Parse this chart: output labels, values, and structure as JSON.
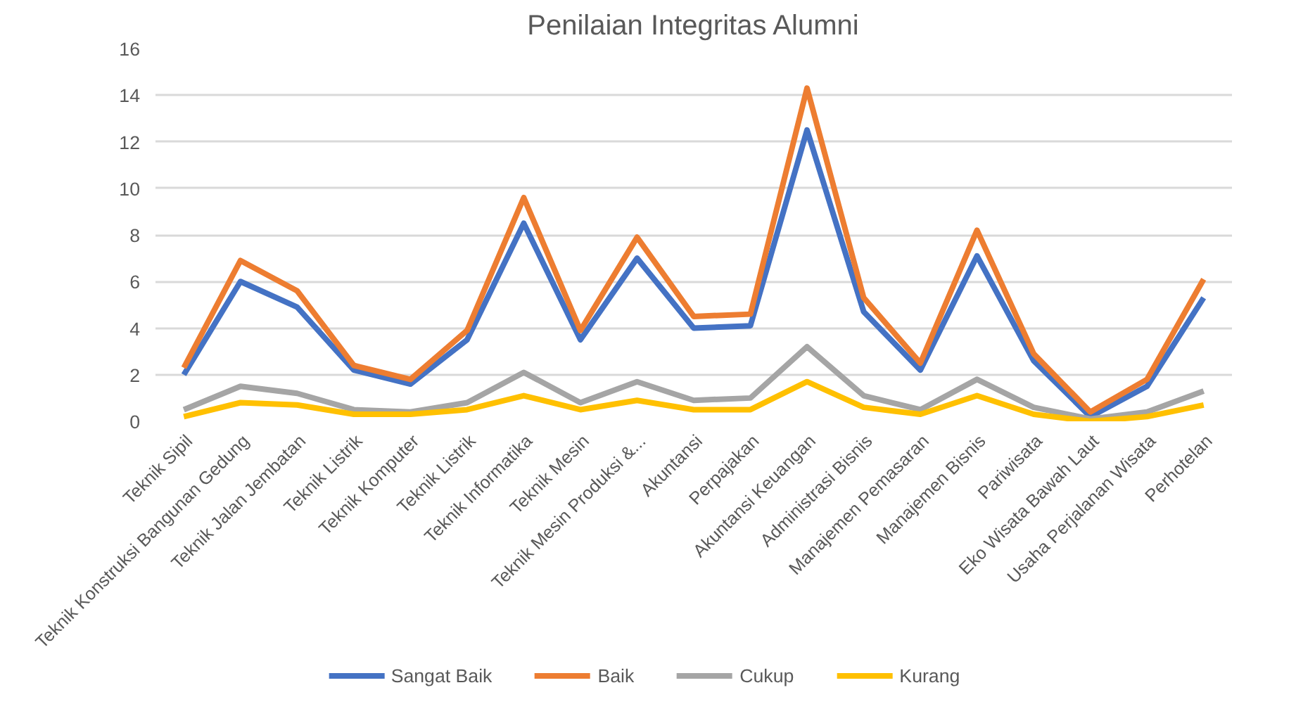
{
  "chart_data": {
    "type": "line",
    "title": "Penilaian Integritas Alumni",
    "categories": [
      "Teknik Sipil",
      "Teknik Konstruksi Bangunan Gedung",
      "Teknik Jalan Jembatan",
      "Teknik Listrik",
      "Teknik Komputer",
      "Teknik Listrik",
      "Teknik Informatika",
      "Teknik Mesin",
      "Teknik Mesin Produksi &...",
      "Akuntansi",
      "Perpajakan",
      "Akuntansi Keuangan",
      "Administrasi Bisnis",
      "Manajemen Pemasaran",
      "Manajemen Bisnis",
      "Pariwisata",
      "Eko Wisata Bawah Laut",
      "Usaha Perjalanan Wisata",
      "Perhotelan"
    ],
    "series": [
      {
        "name": "Sangat Baik",
        "color": "#4472c4",
        "values": [
          2.0,
          6.0,
          4.9,
          2.2,
          1.6,
          3.5,
          8.5,
          3.5,
          7.0,
          4.0,
          4.1,
          12.5,
          4.7,
          2.2,
          7.1,
          2.6,
          0.2,
          1.5,
          5.3
        ]
      },
      {
        "name": "Baik",
        "color": "#ed7d31",
        "values": [
          2.3,
          6.9,
          5.6,
          2.4,
          1.8,
          3.9,
          9.6,
          3.9,
          7.9,
          4.5,
          4.6,
          14.3,
          5.3,
          2.5,
          8.2,
          2.9,
          0.4,
          1.8,
          6.1
        ]
      },
      {
        "name": "Cukup",
        "color": "#a5a5a5",
        "values": [
          0.5,
          1.5,
          1.2,
          0.5,
          0.4,
          0.8,
          2.1,
          0.8,
          1.7,
          0.9,
          1.0,
          3.2,
          1.1,
          0.5,
          1.8,
          0.6,
          0.1,
          0.4,
          1.3
        ]
      },
      {
        "name": "Kurang",
        "color": "#ffc000",
        "values": [
          0.2,
          0.8,
          0.7,
          0.3,
          0.3,
          0.5,
          1.1,
          0.5,
          0.9,
          0.5,
          0.5,
          1.7,
          0.6,
          0.3,
          1.1,
          0.3,
          0.0,
          0.2,
          0.7
        ]
      }
    ],
    "ylim": [
      0,
      16
    ],
    "yticks": [
      0,
      2,
      4,
      6,
      8,
      10,
      12,
      14,
      16
    ],
    "grid": "y",
    "legend": "bottom",
    "marker": "none",
    "line_style": "solid"
  }
}
